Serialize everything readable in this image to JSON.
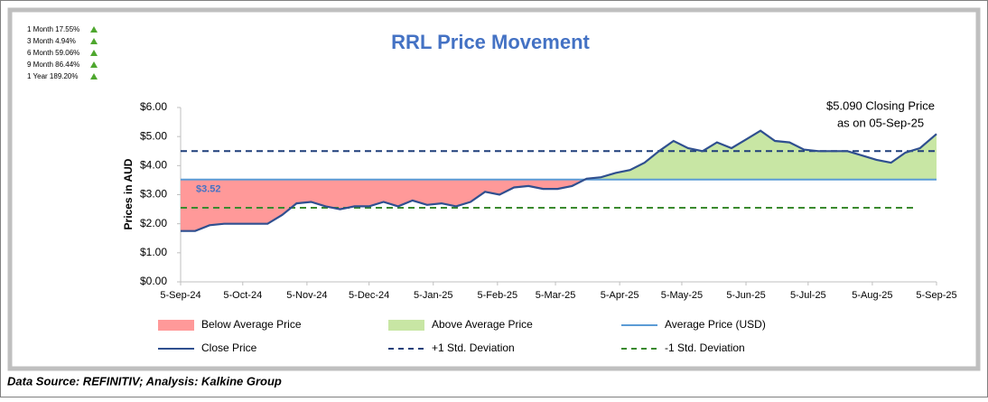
{
  "chart_data": {
    "type": "line",
    "title": "RRL Price Movement",
    "ylabel": "Prices in AUD",
    "source": "Data Source: REFINITIV; Analysis: Kalkine Group",
    "returns": [
      "1 Month 17.55%",
      "3 Month 4.94%",
      "6 Month 59.06%",
      "9 Month 86.44%",
      "1 Year 189.20%"
    ],
    "annotation": [
      "$5.090 Closing Price",
      "as on 05-Sep-25"
    ],
    "x": [
      "2024-09-05",
      "2024-09-12",
      "2024-09-19",
      "2024-09-26",
      "2024-10-03",
      "2024-10-10",
      "2024-10-17",
      "2024-10-24",
      "2024-10-31",
      "2024-11-07",
      "2024-11-14",
      "2024-11-21",
      "2024-11-28",
      "2024-12-05",
      "2024-12-12",
      "2024-12-19",
      "2024-12-26",
      "2025-01-02",
      "2025-01-09",
      "2025-01-16",
      "2025-01-23",
      "2025-01-30",
      "2025-02-06",
      "2025-02-13",
      "2025-02-20",
      "2025-02-27",
      "2025-03-06",
      "2025-03-13",
      "2025-03-20",
      "2025-03-27",
      "2025-04-03",
      "2025-04-10",
      "2025-04-17",
      "2025-04-24",
      "2025-05-01",
      "2025-05-08",
      "2025-05-15",
      "2025-05-22",
      "2025-05-29",
      "2025-06-05",
      "2025-06-12",
      "2025-06-19",
      "2025-06-26",
      "2025-07-03",
      "2025-07-10",
      "2025-07-17",
      "2025-07-24",
      "2025-07-31",
      "2025-08-07",
      "2025-08-14",
      "2025-08-21",
      "2025-08-28",
      "2025-09-05"
    ],
    "series": [
      {
        "name": "Close Price",
        "color": "#2f4f8f",
        "values": [
          1.75,
          1.75,
          1.95,
          2.0,
          2.0,
          2.0,
          2.0,
          2.3,
          2.7,
          2.75,
          2.6,
          2.5,
          2.6,
          2.6,
          2.75,
          2.6,
          2.8,
          2.65,
          2.7,
          2.6,
          2.75,
          3.1,
          3.0,
          3.25,
          3.3,
          3.2,
          3.2,
          3.3,
          3.55,
          3.6,
          3.75,
          3.85,
          4.1,
          4.5,
          4.85,
          4.6,
          4.5,
          4.8,
          4.6,
          4.9,
          5.2,
          4.85,
          4.8,
          4.55,
          4.5,
          4.5,
          4.5,
          4.35,
          4.2,
          4.1,
          4.45,
          4.6,
          5.09
        ]
      }
    ],
    "average": {
      "name": "Average Price (USD)",
      "value": 3.52,
      "value_label": "$3.52",
      "color": "#5b9bd5"
    },
    "upper_std": {
      "name": "+1 Std. Deviation",
      "value": 4.5,
      "color": "#1f3f7a"
    },
    "lower_std": {
      "name": "-1 Std. Deviation",
      "value": 2.55,
      "color": "#3a8a2e"
    },
    "below_fill": {
      "name": "Below Average Price",
      "color": "#ff9999"
    },
    "above_fill": {
      "name": "Above Average Price",
      "color": "#c8e6a4"
    },
    "ylim": [
      0,
      6
    ],
    "yticks": [
      {
        "value": 0,
        "label": "$0.00"
      },
      {
        "value": 1,
        "label": "$1.00"
      },
      {
        "value": 2,
        "label": "$2.00"
      },
      {
        "value": 3,
        "label": "$3.00"
      },
      {
        "value": 4,
        "label": "$4.00"
      },
      {
        "value": 5,
        "label": "$5.00"
      },
      {
        "value": 6,
        "label": "$6.00"
      }
    ],
    "xlim": [
      "2024-09-05",
      "2025-09-05"
    ],
    "xticks": [
      {
        "value": "2024-09-05",
        "label": "5-Sep-24"
      },
      {
        "value": "2024-10-05",
        "label": "5-Oct-24"
      },
      {
        "value": "2024-11-05",
        "label": "5-Nov-24"
      },
      {
        "value": "2024-12-05",
        "label": "5-Dec-24"
      },
      {
        "value": "2025-01-05",
        "label": "5-Jan-25"
      },
      {
        "value": "2025-02-05",
        "label": "5-Feb-25"
      },
      {
        "value": "2025-03-05",
        "label": "5-Mar-25"
      },
      {
        "value": "2025-04-05",
        "label": "5-Apr-25"
      },
      {
        "value": "2025-05-05",
        "label": "5-May-25"
      },
      {
        "value": "2025-06-05",
        "label": "5-Jun-25"
      },
      {
        "value": "2025-07-05",
        "label": "5-Jul-25"
      },
      {
        "value": "2025-08-05",
        "label": "5-Aug-25"
      },
      {
        "value": "2025-09-05",
        "label": "5-Sep-25"
      }
    ],
    "return_color": "#4ea72e"
  }
}
